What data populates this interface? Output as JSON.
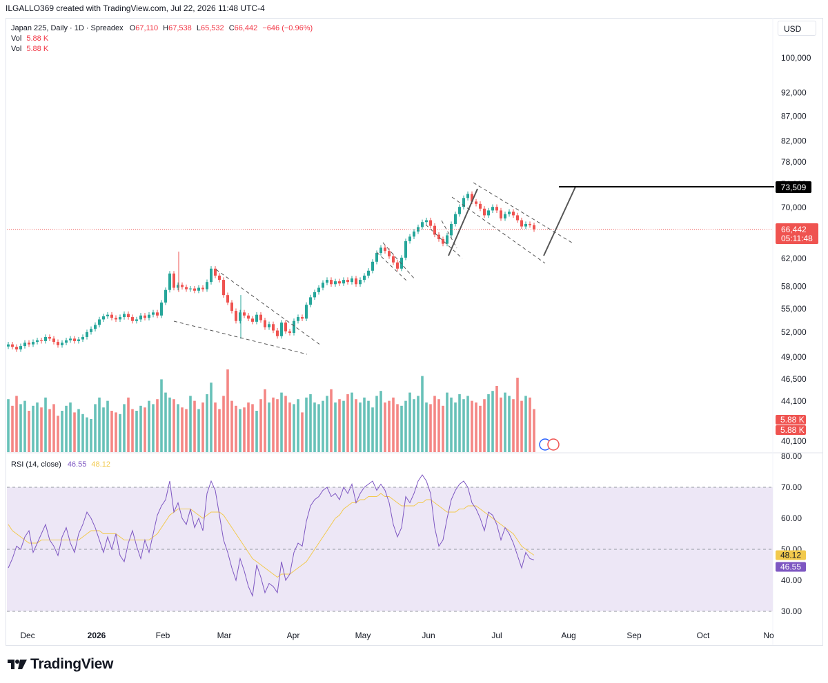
{
  "header": {
    "text": "ILGALLO369 created with TradingView.com, Jul 22, 2026 11:48 UTC-4"
  },
  "legend": {
    "symbol": "Japan 225, Daily · 1D · Spreadex",
    "o_label": "O",
    "o_value": "67,110",
    "h_label": "H",
    "h_value": "67,538",
    "l_label": "L",
    "l_value": "65,532",
    "c_label": "C",
    "c_value": "66,442",
    "change": "−646 (−0.96%)",
    "vol1_label": "Vol",
    "vol1_value": "5.88 K",
    "vol2_label": "Vol",
    "vol2_value": "5.88 K"
  },
  "currency_button": "USD",
  "rsi_legend": {
    "title": "RSI (14, close)",
    "rsi_value": "46.55",
    "ma_value": "48.12"
  },
  "footer": {
    "brand": "TradingView"
  },
  "colors": {
    "up": "#26a69a",
    "down": "#ef5350",
    "rsi": "#7e57c2",
    "rsi_ma": "#f2c94c",
    "rsi_band": "#ede7f6"
  },
  "chart_data": [
    {
      "type": "candlestick",
      "title": "Japan 225, Daily · 1D · Spreadex",
      "price_scale": "log",
      "y_ticks": [
        "100,000",
        "92,000",
        "87,000",
        "82,000",
        "78,000",
        "74,000",
        "70,000",
        "62,000",
        "58,000",
        "55,000",
        "52,000",
        "49,000",
        "46,500",
        "44,100",
        "40,100"
      ],
      "x_ticks": [
        "Dec",
        "2026",
        "Feb",
        "Mar",
        "Apr",
        "May",
        "Jun",
        "Jul",
        "Aug",
        "Sep",
        "Oct",
        "No"
      ],
      "last_price": "66,442",
      "countdown": "05:11:48",
      "target_label": "73,509",
      "volume_labels": [
        "5.88 K",
        "5.88 K"
      ],
      "closes_approx": [
        50500,
        50200,
        49900,
        50300,
        50700,
        50500,
        50800,
        51000,
        50900,
        51400,
        51200,
        50800,
        50400,
        50700,
        51000,
        51200,
        50900,
        51100,
        51400,
        52000,
        52400,
        52900,
        53600,
        54000,
        54200,
        53800,
        53600,
        53900,
        54300,
        53900,
        53400,
        53600,
        54100,
        53800,
        54200,
        54500,
        54100,
        55800,
        57500,
        59800,
        57800,
        58200,
        57900,
        57600,
        57700,
        57400,
        57800,
        57600,
        58600,
        60500,
        59500,
        58900,
        56800,
        55800,
        54700,
        53400,
        54500,
        54100,
        53700,
        53300,
        54200,
        53500,
        52600,
        53000,
        52200,
        51500,
        53200,
        52100,
        51900,
        53400,
        53900,
        53700,
        55500,
        56500,
        57200,
        57800,
        58500,
        58900,
        58300,
        58700,
        58400,
        58900,
        58600,
        59100,
        58300,
        58900,
        59500,
        60200,
        61500,
        62800,
        63600,
        63100,
        62300,
        61400,
        60500,
        62100,
        64600,
        65300,
        66100,
        66800,
        67600,
        67900,
        67000,
        65600,
        64900,
        64200,
        65500,
        67300,
        68900,
        70100,
        71600,
        72300,
        71000,
        70600,
        69800,
        68700,
        69500,
        70100,
        69500,
        68200,
        68900,
        69300,
        68700,
        67900,
        66900,
        67300,
        67110,
        66442
      ],
      "volumes_approx": [
        3.2,
        2.8,
        3.4,
        2.9,
        3.1,
        2.5,
        2.8,
        3.0,
        2.7,
        3.3,
        2.6,
        2.9,
        2.2,
        2.5,
        2.8,
        3.0,
        2.4,
        2.6,
        2.3,
        2.1,
        2.0,
        2.9,
        3.3,
        2.7,
        3.1,
        2.5,
        2.4,
        2.3,
        2.9,
        3.3,
        2.6,
        2.5,
        2.8,
        2.7,
        3.1,
        2.9,
        3.2,
        4.4,
        3.6,
        3.3,
        3.2,
        2.9,
        2.7,
        2.6,
        3.4,
        3.1,
        2.6,
        3.0,
        3.5,
        4.2,
        3.0,
        2.6,
        3.4,
        5.0,
        3.1,
        2.8,
        2.6,
        2.7,
        3.0,
        2.9,
        2.5,
        3.2,
        3.8,
        3.0,
        3.3,
        3.2,
        3.6,
        3.4,
        3.0,
        2.9,
        3.2,
        2.4,
        3.3,
        3.5,
        3.0,
        2.9,
        3.1,
        3.4,
        3.8,
        3.0,
        3.2,
        3.1,
        3.5,
        3.6,
        3.2,
        3.0,
        3.3,
        3.1,
        2.7,
        3.4,
        3.7,
        3.0,
        3.1,
        3.3,
        2.9,
        2.8,
        3.1,
        3.6,
        3.2,
        3.4,
        4.6,
        3.0,
        2.9,
        3.4,
        3.2,
        2.8,
        3.6,
        3.3,
        3.0,
        3.5,
        3.2,
        3.4,
        3.1,
        3.0,
        2.8,
        3.2,
        3.5,
        3.7,
        4.0,
        3.3,
        3.6,
        3.4,
        3.2,
        4.5,
        3.1,
        3.4,
        3.3,
        2.6
      ],
      "rsi_approx": [
        44,
        47,
        51,
        50,
        54,
        56,
        49,
        52,
        55,
        58,
        53,
        51,
        48,
        54,
        57,
        52,
        49,
        55,
        58,
        62,
        60,
        57,
        53,
        49,
        54,
        50,
        55,
        48,
        46,
        52,
        56,
        51,
        47,
        53,
        49,
        55,
        61,
        64,
        66,
        72,
        62,
        65,
        60,
        58,
        63,
        57,
        60,
        56,
        68,
        72,
        69,
        61,
        53,
        49,
        44,
        40,
        47,
        43,
        38,
        35,
        45,
        41,
        36,
        39,
        38,
        36,
        46,
        40,
        42,
        49,
        52,
        51,
        59,
        64,
        66,
        67,
        69,
        70,
        67,
        68,
        66,
        70,
        68,
        71,
        65,
        68,
        70,
        71,
        72,
        69,
        71,
        69,
        65,
        58,
        54,
        57,
        67,
        65,
        68,
        72,
        74,
        72,
        68,
        57,
        51,
        53,
        60,
        66,
        69,
        71,
        72,
        70,
        65,
        63,
        60,
        56,
        62,
        61,
        58,
        53,
        57,
        55,
        52,
        48,
        44,
        49,
        47,
        46.55
      ],
      "rsi_ma_approx": [
        58,
        56,
        55,
        54,
        53,
        52,
        52,
        52,
        53,
        53,
        53,
        53,
        53,
        53,
        53,
        53,
        53,
        53,
        54,
        55,
        56,
        56,
        56,
        55,
        55,
        55,
        55,
        54,
        53,
        53,
        53,
        53,
        53,
        53,
        53,
        54,
        55,
        57,
        59,
        61,
        62,
        63,
        63,
        63,
        63,
        62,
        61,
        60,
        61,
        62,
        62,
        62,
        61,
        59,
        57,
        55,
        53,
        51,
        49,
        47,
        46,
        45,
        44,
        43,
        42,
        41,
        42,
        42,
        42,
        43,
        44,
        45,
        46,
        48,
        50,
        52,
        54,
        56,
        58,
        60,
        61,
        63,
        64,
        65,
        65,
        66,
        66,
        67,
        67,
        67,
        68,
        67,
        67,
        66,
        65,
        64,
        64,
        64,
        64,
        65,
        65,
        66,
        66,
        65,
        64,
        63,
        62,
        62,
        62,
        63,
        63,
        64,
        64,
        64,
        63,
        62,
        61,
        60,
        59,
        58,
        57,
        56,
        55,
        53,
        51,
        50,
        49,
        48.12
      ],
      "rsi_ticks": [
        "80.00",
        "70.00",
        "60.00",
        "50.00",
        "40.00",
        "30.00"
      ],
      "rsi_levels": [
        70,
        50,
        30
      ]
    }
  ]
}
